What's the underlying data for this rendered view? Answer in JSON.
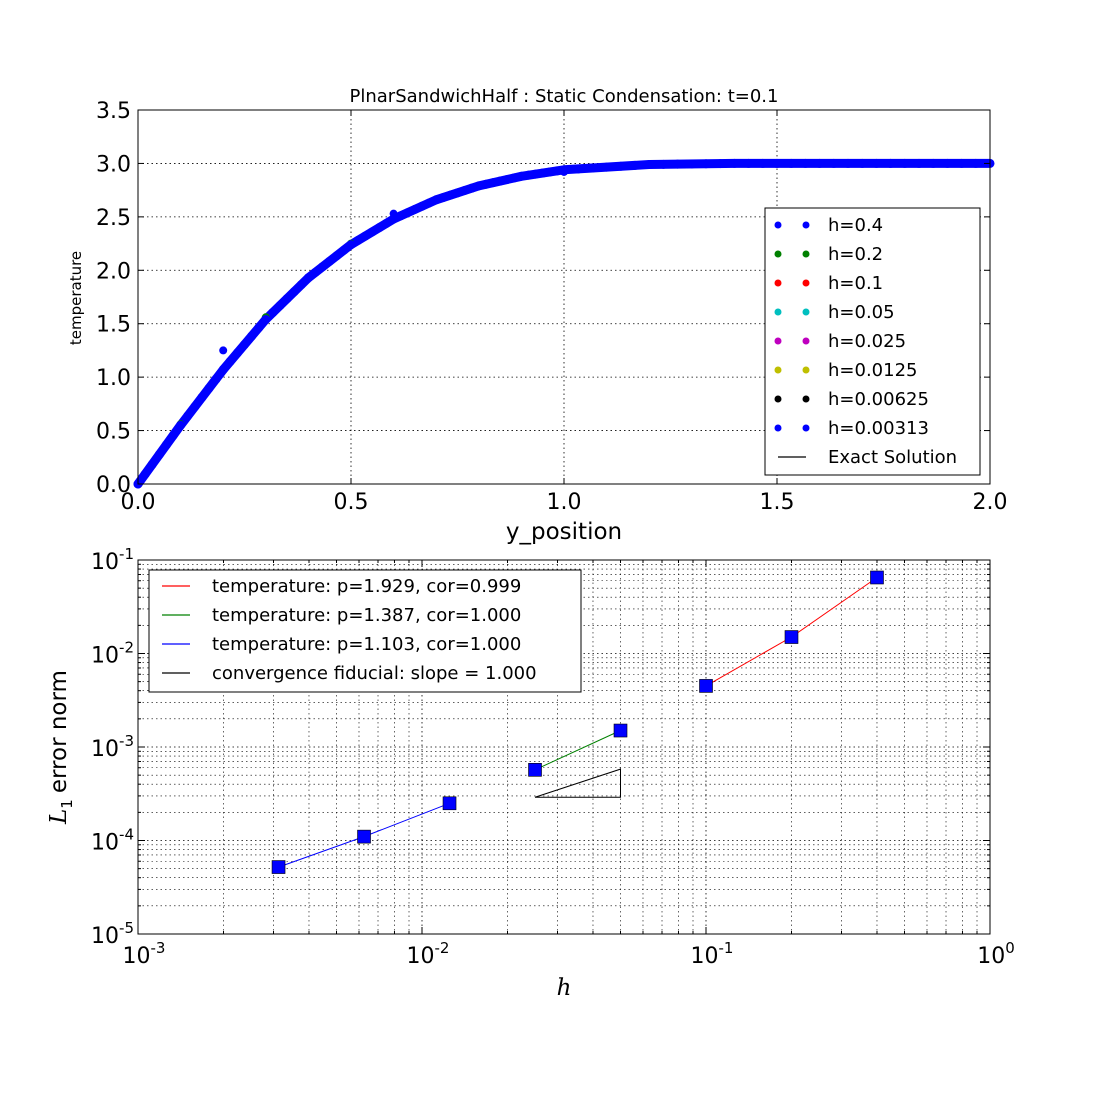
{
  "chart_data": [
    {
      "type": "scatter",
      "title": "PlnarSandwichHalf : Static Condensation: t=0.1",
      "xlabel": "y_position",
      "ylabel": "temperature",
      "xlim": [
        0.0,
        2.0
      ],
      "ylim": [
        0.0,
        3.5
      ],
      "x_ticks": [
        "0.0",
        "0.5",
        "1.0",
        "1.5",
        "2.0"
      ],
      "y_ticks": [
        "0.0",
        "0.5",
        "1.0",
        "1.5",
        "2.0",
        "2.5",
        "3.0",
        "3.5"
      ],
      "grid": true,
      "legend_position": "right",
      "series": [
        {
          "name": "h=0.4",
          "color": "#0000ff",
          "marker": "dot",
          "x": [
            0.0,
            0.2,
            0.6,
            1.0
          ],
          "y": [
            0.0,
            1.25,
            2.53,
            2.92
          ]
        },
        {
          "name": "h=0.2",
          "color": "#008000",
          "marker": "dot",
          "x": [
            0.1,
            0.3,
            0.5
          ],
          "y": [
            0.56,
            1.56,
            2.25
          ]
        },
        {
          "name": "h=0.1",
          "color": "#ff0000",
          "marker": "dot",
          "x": [],
          "y": []
        },
        {
          "name": "h=0.05",
          "color": "#00bfbf",
          "marker": "dot",
          "x": [],
          "y": []
        },
        {
          "name": "h=0.025",
          "color": "#bf00bf",
          "marker": "dot",
          "x": [],
          "y": []
        },
        {
          "name": "h=0.0125",
          "color": "#bfbf00",
          "marker": "dot",
          "x": [],
          "y": []
        },
        {
          "name": "h=0.00625",
          "color": "#000000",
          "marker": "dot",
          "x": [],
          "y": []
        },
        {
          "name": "h=0.00313",
          "color": "#0000ff",
          "marker": "dense",
          "x": [
            0.0,
            0.1,
            0.2,
            0.3,
            0.4,
            0.5,
            0.6,
            0.7,
            0.8,
            0.9,
            1.0,
            1.2,
            1.4,
            1.6,
            1.8,
            2.0
          ],
          "y": [
            0.0,
            0.55,
            1.07,
            1.54,
            1.93,
            2.24,
            2.48,
            2.66,
            2.79,
            2.88,
            2.94,
            2.99,
            3.0,
            3.0,
            3.0,
            3.0
          ]
        },
        {
          "name": "Exact Solution",
          "color": "#000000",
          "marker": "line",
          "x": [],
          "y": []
        }
      ]
    },
    {
      "type": "line",
      "title": "",
      "xlabel": "h",
      "ylabel": "L1 error norm",
      "ylabel_parts": {
        "base": "L",
        "sub": "1",
        "rest": "error norm"
      },
      "xscale": "log",
      "yscale": "log",
      "xlim": [
        0.001,
        1.0
      ],
      "ylim": [
        1e-05,
        0.1
      ],
      "x_ticks": [
        {
          "base": "10",
          "exp": "-3"
        },
        {
          "base": "10",
          "exp": "-2"
        },
        {
          "base": "10",
          "exp": "-1"
        },
        {
          "base": "10",
          "exp": "0"
        }
      ],
      "y_ticks": [
        {
          "base": "10",
          "exp": "-5"
        },
        {
          "base": "10",
          "exp": "-4"
        },
        {
          "base": "10",
          "exp": "-3"
        },
        {
          "base": "10",
          "exp": "-2"
        },
        {
          "base": "10",
          "exp": "-1"
        }
      ],
      "grid": true,
      "legend_position": "upper-left",
      "series": [
        {
          "name": "temperature: p=1.929, cor=0.999",
          "color": "#ff0000",
          "x": [
            0.1,
            0.2,
            0.4
          ],
          "y": [
            0.0045,
            0.015,
            0.065
          ]
        },
        {
          "name": "temperature: p=1.387, cor=1.000",
          "color": "#008000",
          "x": [
            0.025,
            0.05
          ],
          "y": [
            0.00057,
            0.0015
          ]
        },
        {
          "name": "temperature: p=1.103, cor=1.000",
          "color": "#0000ff",
          "x": [
            0.003125,
            0.00625,
            0.0125
          ],
          "y": [
            5.2e-05,
            0.00011,
            0.00025
          ]
        },
        {
          "name": "convergence fiducial: slope = 1.000",
          "color": "#000000",
          "x": [
            0.025,
            0.05
          ],
          "y": [
            0.00029,
            0.00058
          ]
        }
      ],
      "marker_color": "#0000ff"
    }
  ]
}
